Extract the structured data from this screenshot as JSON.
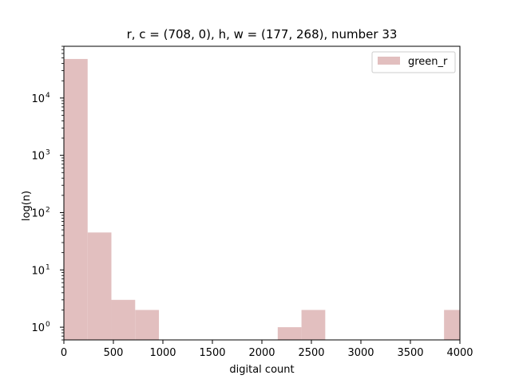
{
  "chart_data": {
    "type": "bar",
    "title": "r, c = (708, 0), h, w = (177, 268), number 33",
    "xlabel": "digital count",
    "ylabel": "log(n)",
    "yscale": "log",
    "xlim": [
      0,
      4000
    ],
    "ylim": [
      0.6,
      80000
    ],
    "grid": false,
    "legend_position": "top-right",
    "x_ticks": [
      0,
      500,
      1000,
      1500,
      2000,
      2500,
      3000,
      3500,
      4000
    ],
    "x_tick_labels": [
      "0",
      "500",
      "1000",
      "1500",
      "2000",
      "2500",
      "3000",
      "3500",
      "4000"
    ],
    "y_ticks": [
      1,
      10,
      100,
      1000,
      10000
    ],
    "y_tick_labels": [
      "10^0",
      "10^1",
      "10^2",
      "10^3",
      "10^4"
    ],
    "series": [
      {
        "name": "green_r",
        "color": "#e2bfbf",
        "bins": [
          {
            "x0": 0,
            "x1": 240,
            "count": 48000
          },
          {
            "x0": 240,
            "x1": 480,
            "count": 45
          },
          {
            "x0": 480,
            "x1": 720,
            "count": 3
          },
          {
            "x0": 720,
            "x1": 960,
            "count": 2
          },
          {
            "x0": 2160,
            "x1": 2400,
            "count": 1
          },
          {
            "x0": 2400,
            "x1": 2640,
            "count": 2
          },
          {
            "x0": 3840,
            "x1": 4000,
            "count": 2
          }
        ]
      }
    ]
  }
}
